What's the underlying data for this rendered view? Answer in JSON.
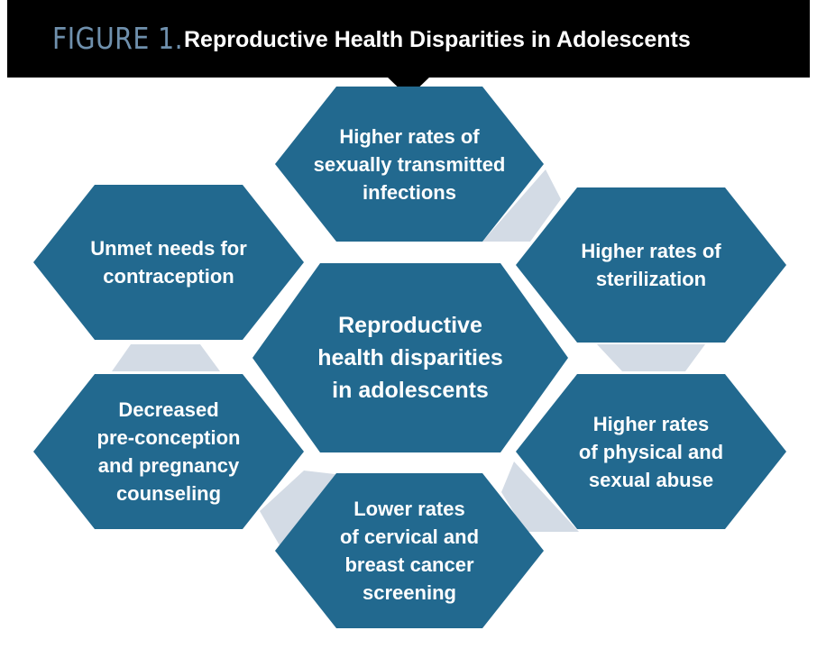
{
  "header": {
    "figure_label": "FIGURE 1.",
    "title": "Reproductive Health Disparities in Adolescents"
  },
  "diagram": {
    "center": "Reproductive\nhealth disparities\nin adolescents",
    "nodes": [
      {
        "id": "sti",
        "label": "Higher rates of\nsexually transmitted\ninfections"
      },
      {
        "id": "sterilization",
        "label": "Higher rates of\nsterilization"
      },
      {
        "id": "abuse",
        "label": "Higher rates\nof physical and\nsexual abuse"
      },
      {
        "id": "screening",
        "label": "Lower rates\nof cervical and\nbreast cancer\nscreening"
      },
      {
        "id": "counseling",
        "label": "Decreased\npre-conception\nand pregnancy\ncounseling"
      },
      {
        "id": "contraception",
        "label": "Unmet needs for\ncontraception"
      }
    ]
  },
  "colors": {
    "header_background": "#000000",
    "figure_label": "#6f90ad",
    "title_text": "#ffffff",
    "hexagon_fill": "#22698f",
    "connector_fill": "#d3dbe5",
    "hexagon_text": "#ffffff"
  }
}
